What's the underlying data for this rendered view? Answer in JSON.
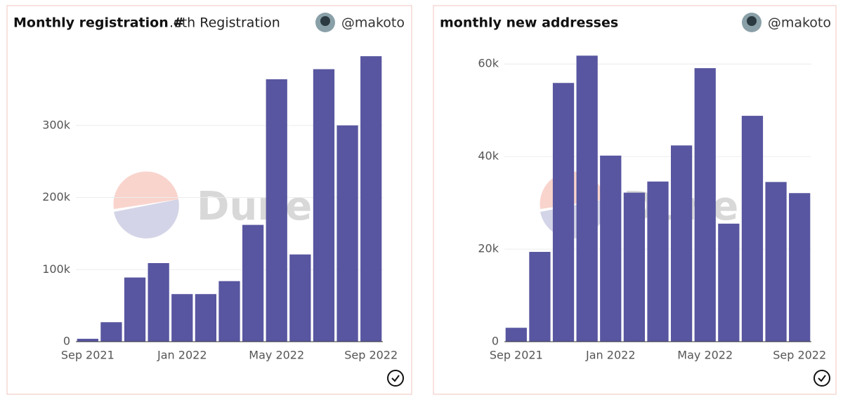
{
  "chart_data": [
    {
      "type": "bar",
      "title": "Monthly registration #",
      "subtitle": ".eth Registration",
      "author": "@makoto",
      "watermark": "Dune",
      "categories": [
        "Sep 2021",
        null,
        null,
        null,
        "Jan 2022",
        null,
        null,
        null,
        "May 2022",
        null,
        null,
        null,
        "Sep 2022"
      ],
      "values": [
        4000,
        27000,
        89000,
        109000,
        66000,
        66000,
        84000,
        162000,
        364000,
        121000,
        378000,
        300000,
        396000
      ],
      "color": "#5856a0",
      "ylim": [
        0,
        400000
      ],
      "yticks": [
        0,
        {
          "value": 100000,
          "label": "100k"
        },
        {
          "value": 200000,
          "label": "200k"
        },
        {
          "value": 300000,
          "label": "300k"
        }
      ],
      "grid": true
    },
    {
      "type": "bar",
      "title": "monthly new addresses",
      "author": "@makoto",
      "watermark": "Dune",
      "categories": [
        "Sep 2021",
        null,
        null,
        null,
        "Jan 2022",
        null,
        null,
        null,
        "May 2022",
        null,
        null,
        null,
        "Sep 2022"
      ],
      "values": [
        3000,
        19400,
        55900,
        61800,
        40200,
        32200,
        34600,
        42400,
        59100,
        25500,
        48800,
        34500,
        32100
      ],
      "color": "#5856a0",
      "ylim": [
        0,
        62000
      ],
      "yticks": [
        0,
        {
          "value": 20000,
          "label": "20k"
        },
        {
          "value": 40000,
          "label": "40k"
        },
        {
          "value": 60000,
          "label": "60k"
        }
      ],
      "grid": true
    }
  ]
}
